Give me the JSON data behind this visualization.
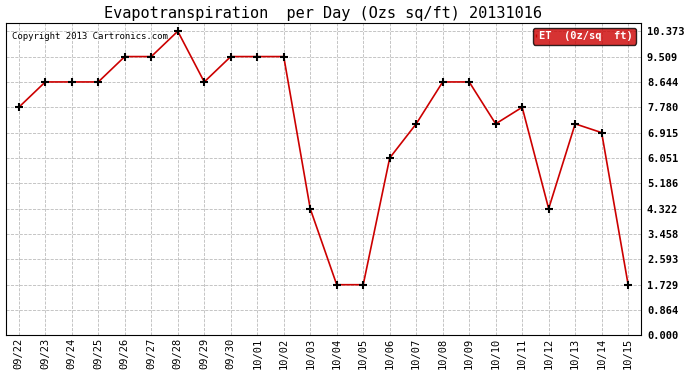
{
  "title": "Evapotranspiration  per Day (Ozs sq/ft) 20131016",
  "copyright_text": "Copyright 2013 Cartronics.com",
  "legend_label": "ET  (0z/sq  ft)",
  "legend_bg": "#cc0000",
  "legend_text_color": "#ffffff",
  "x_labels": [
    "09/22",
    "09/23",
    "09/24",
    "09/25",
    "09/26",
    "09/27",
    "09/28",
    "09/29",
    "09/30",
    "10/01",
    "10/02",
    "10/03",
    "10/04",
    "10/05",
    "10/06",
    "10/07",
    "10/08",
    "10/09",
    "10/10",
    "10/11",
    "10/12",
    "10/13",
    "10/14",
    "10/15"
  ],
  "y_values": [
    7.78,
    8.644,
    8.644,
    8.644,
    9.509,
    9.509,
    10.373,
    8.644,
    9.509,
    9.509,
    9.509,
    4.322,
    1.729,
    1.729,
    6.051,
    7.215,
    8.644,
    8.644,
    7.215,
    7.78,
    4.322,
    7.215,
    6.915,
    1.729
  ],
  "y_ticks": [
    0.0,
    0.864,
    1.729,
    2.593,
    3.458,
    4.322,
    5.186,
    6.051,
    6.915,
    7.78,
    8.644,
    9.509,
    10.373
  ],
  "ylim": [
    0.0,
    10.65
  ],
  "line_color": "#cc0000",
  "marker": "+",
  "marker_size": 6,
  "marker_lw": 1.5,
  "background_color": "#ffffff",
  "grid_color": "#bbbbbb",
  "title_fontsize": 11,
  "tick_fontsize": 7.5,
  "copyright_fontsize": 6.5
}
